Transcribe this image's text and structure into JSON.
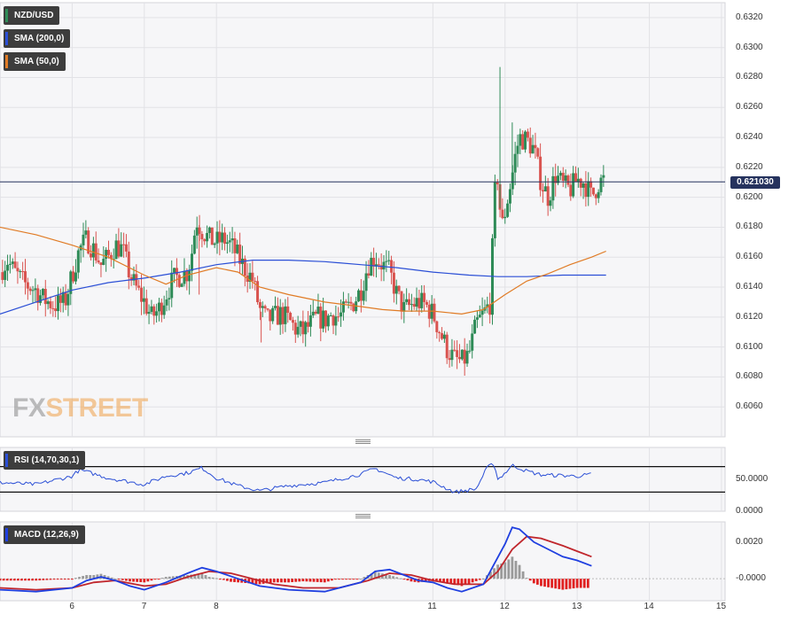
{
  "colors": {
    "background": "#ffffff",
    "panel_bg": "#f6f6f8",
    "grid": "#e2e2e6",
    "up": "#2e8b57",
    "down": "#d9534f",
    "sma200": "#2b4fd6",
    "sma50": "#e07b25",
    "price_line": "#26335e",
    "rsi": "#2b4fd6",
    "macd": "#1f3fe0",
    "signal": "#c0262c",
    "hist_pos": "#9a9a9a",
    "hist_neg": "#e02020"
  },
  "legend": {
    "pair": "NZD/USD",
    "sma200": "SMA (200,0)",
    "sma50": "SMA (50,0)",
    "rsi": "RSI (14,70,30,1)",
    "macd": "MACD (12,26,9)"
  },
  "price_tag": "0.621030",
  "watermark": {
    "fx": "FX",
    "street": "STREET"
  },
  "chart_data": {
    "type": "candlestick",
    "price_axis": {
      "ylim": [
        0.604,
        0.633
      ],
      "ticks": [
        "0.6320",
        "0.6300",
        "0.6280",
        "0.6260",
        "0.6240",
        "0.6220",
        "0.6200",
        "0.6180",
        "0.6160",
        "0.6140",
        "0.6120",
        "0.6100",
        "0.6080",
        "0.6060"
      ]
    },
    "current_price": 0.62103,
    "x_axis": {
      "xlim": [
        5.0,
        15.05
      ],
      "ticks": [
        {
          "x": 6,
          "label": "6"
        },
        {
          "x": 7,
          "label": "7"
        },
        {
          "x": 8,
          "label": "8"
        },
        {
          "x": 11,
          "label": "11"
        },
        {
          "x": 12,
          "label": "12"
        },
        {
          "x": 13,
          "label": "13"
        },
        {
          "x": 14,
          "label": "14"
        },
        {
          "x": 15,
          "label": "15"
        }
      ]
    },
    "close_path": [
      [
        5.0,
        0.615
      ],
      [
        5.1,
        0.6158
      ],
      [
        5.2,
        0.615
      ],
      [
        5.35,
        0.6142
      ],
      [
        5.5,
        0.6138
      ],
      [
        5.6,
        0.6132
      ],
      [
        5.75,
        0.6128
      ],
      [
        5.9,
        0.613
      ],
      [
        6.0,
        0.6148
      ],
      [
        6.1,
        0.6165
      ],
      [
        6.2,
        0.6172
      ],
      [
        6.3,
        0.6165
      ],
      [
        6.4,
        0.6155
      ],
      [
        6.5,
        0.616
      ],
      [
        6.6,
        0.6168
      ],
      [
        6.7,
        0.6165
      ],
      [
        6.8,
        0.6148
      ],
      [
        6.9,
        0.6138
      ],
      [
        7.0,
        0.613
      ],
      [
        7.1,
        0.612
      ],
      [
        7.2,
        0.6125
      ],
      [
        7.3,
        0.6135
      ],
      [
        7.4,
        0.6145
      ],
      [
        7.5,
        0.6148
      ],
      [
        7.6,
        0.615
      ],
      [
        7.65,
        0.616
      ],
      [
        7.72,
        0.6185
      ],
      [
        7.8,
        0.6178
      ],
      [
        7.9,
        0.6172
      ],
      [
        8.0,
        0.617
      ],
      [
        8.1,
        0.6172
      ],
      [
        8.2,
        0.6168
      ],
      [
        8.3,
        0.616
      ],
      [
        8.4,
        0.6152
      ],
      [
        8.5,
        0.6145
      ],
      [
        8.6,
        0.6125
      ],
      [
        8.7,
        0.6118
      ],
      [
        8.8,
        0.612
      ],
      [
        8.9,
        0.6122
      ],
      [
        9.0,
        0.6118
      ],
      [
        9.1,
        0.6112
      ],
      [
        9.2,
        0.611
      ],
      [
        9.3,
        0.6115
      ],
      [
        9.4,
        0.612
      ],
      [
        9.5,
        0.6118
      ],
      [
        9.6,
        0.6122
      ],
      [
        9.7,
        0.612
      ],
      [
        9.8,
        0.6125
      ],
      [
        9.9,
        0.613
      ],
      [
        10.0,
        0.6138
      ],
      [
        10.1,
        0.6155
      ],
      [
        10.2,
        0.616
      ],
      [
        10.3,
        0.6155
      ],
      [
        10.4,
        0.615
      ],
      [
        10.5,
        0.6135
      ],
      [
        10.6,
        0.6125
      ],
      [
        10.7,
        0.6128
      ],
      [
        10.8,
        0.613
      ],
      [
        10.9,
        0.6128
      ],
      [
        11.0,
        0.6122
      ],
      [
        11.1,
        0.611
      ],
      [
        11.2,
        0.6098
      ],
      [
        11.3,
        0.6092
      ],
      [
        11.4,
        0.609
      ],
      [
        11.5,
        0.6095
      ],
      [
        11.6,
        0.6115
      ],
      [
        11.7,
        0.6122
      ],
      [
        11.8,
        0.613
      ],
      [
        11.85,
        0.62
      ],
      [
        11.9,
        0.6215
      ],
      [
        11.95,
        0.6178
      ],
      [
        12.0,
        0.619
      ],
      [
        12.1,
        0.6215
      ],
      [
        12.15,
        0.623
      ],
      [
        12.2,
        0.624
      ],
      [
        12.3,
        0.6238
      ],
      [
        12.4,
        0.6232
      ],
      [
        12.5,
        0.621
      ],
      [
        12.6,
        0.62
      ],
      [
        12.7,
        0.6215
      ],
      [
        12.8,
        0.6208
      ],
      [
        12.9,
        0.6205
      ],
      [
        13.0,
        0.6212
      ],
      [
        13.1,
        0.621
      ],
      [
        13.2,
        0.62
      ],
      [
        13.3,
        0.621
      ],
      [
        13.4,
        0.6212
      ]
    ],
    "spikes": [
      {
        "x": 11.93,
        "high": 0.6287
      },
      {
        "x": 12.1,
        "high": 0.625
      },
      {
        "x": 8.62,
        "low": 0.6103
      },
      {
        "x": 7.76,
        "low": 0.6135
      }
    ],
    "sma200": [
      [
        5.0,
        0.6122
      ],
      [
        5.5,
        0.613
      ],
      [
        6.0,
        0.6138
      ],
      [
        6.5,
        0.6143
      ],
      [
        7.0,
        0.6146
      ],
      [
        7.5,
        0.615
      ],
      [
        8.0,
        0.6155
      ],
      [
        8.5,
        0.6158
      ],
      [
        9.0,
        0.6158
      ],
      [
        9.5,
        0.6157
      ],
      [
        10.0,
        0.6155
      ],
      [
        10.5,
        0.6153
      ],
      [
        11.0,
        0.615
      ],
      [
        11.5,
        0.6148
      ],
      [
        11.9,
        0.6147
      ],
      [
        12.3,
        0.6147
      ],
      [
        12.8,
        0.6148
      ],
      [
        13.4,
        0.6148
      ]
    ],
    "sma50": [
      [
        5.0,
        0.618
      ],
      [
        5.5,
        0.6175
      ],
      [
        6.0,
        0.6168
      ],
      [
        6.5,
        0.616
      ],
      [
        7.0,
        0.6148
      ],
      [
        7.3,
        0.6142
      ],
      [
        7.6,
        0.6148
      ],
      [
        8.0,
        0.6153
      ],
      [
        8.3,
        0.615
      ],
      [
        8.6,
        0.614
      ],
      [
        9.0,
        0.6135
      ],
      [
        9.5,
        0.613
      ],
      [
        10.0,
        0.6127
      ],
      [
        10.3,
        0.6125
      ],
      [
        10.6,
        0.6124
      ],
      [
        11.0,
        0.6124
      ],
      [
        11.4,
        0.6122
      ],
      [
        11.7,
        0.6125
      ],
      [
        12.0,
        0.6135
      ],
      [
        12.3,
        0.6144
      ],
      [
        12.6,
        0.6149
      ],
      [
        12.9,
        0.6155
      ],
      [
        13.2,
        0.616
      ],
      [
        13.4,
        0.6164
      ]
    ],
    "rsi": {
      "ylim": [
        0,
        100
      ],
      "label_ticks": [
        "50.0000",
        "0.0000"
      ],
      "band_lines": [
        70,
        30
      ],
      "series": [
        [
          5.0,
          45
        ],
        [
          5.5,
          42
        ],
        [
          6.0,
          55
        ],
        [
          6.1,
          65
        ],
        [
          6.5,
          52
        ],
        [
          7.0,
          42
        ],
        [
          7.3,
          55
        ],
        [
          7.6,
          60
        ],
        [
          7.8,
          68
        ],
        [
          8.0,
          52
        ],
        [
          8.3,
          40
        ],
        [
          8.6,
          32
        ],
        [
          9.0,
          40
        ],
        [
          9.5,
          45
        ],
        [
          10.0,
          58
        ],
        [
          10.2,
          67
        ],
        [
          10.5,
          52
        ],
        [
          10.8,
          50
        ],
        [
          11.0,
          46
        ],
        [
          11.3,
          30
        ],
        [
          11.6,
          35
        ],
        [
          11.75,
          68
        ],
        [
          11.85,
          75
        ],
        [
          11.9,
          50
        ],
        [
          12.0,
          60
        ],
        [
          12.1,
          72
        ],
        [
          12.3,
          63
        ],
        [
          12.5,
          57
        ],
        [
          12.8,
          56
        ],
        [
          13.0,
          55
        ],
        [
          13.2,
          58
        ]
      ]
    },
    "macd": {
      "ylim": [
        -0.0012,
        0.0031
      ],
      "label_ticks": [
        "0.0020",
        "-0.0000"
      ],
      "macd_line": [
        [
          5.0,
          -0.0006
        ],
        [
          5.5,
          -0.0007
        ],
        [
          6.0,
          -0.0005
        ],
        [
          6.2,
          -0.0001
        ],
        [
          6.4,
          0.0001
        ],
        [
          6.6,
          -0.0001
        ],
        [
          6.8,
          -0.0004
        ],
        [
          7.0,
          -0.0006
        ],
        [
          7.3,
          -0.0002
        ],
        [
          7.6,
          0.0003
        ],
        [
          7.8,
          0.0006
        ],
        [
          8.0,
          0.0004
        ],
        [
          8.3,
          0.0
        ],
        [
          8.6,
          -0.0004
        ],
        [
          9.0,
          -0.0006
        ],
        [
          9.5,
          -0.0007
        ],
        [
          10.0,
          -0.0002
        ],
        [
          10.2,
          0.0004
        ],
        [
          10.4,
          0.0005
        ],
        [
          10.6,
          0.0002
        ],
        [
          10.8,
          -0.0001
        ],
        [
          11.0,
          -0.0002
        ],
        [
          11.2,
          -0.0005
        ],
        [
          11.4,
          -0.0007
        ],
        [
          11.7,
          -0.0003
        ],
        [
          11.85,
          0.0008
        ],
        [
          12.0,
          0.0019
        ],
        [
          12.1,
          0.0028
        ],
        [
          12.2,
          0.0027
        ],
        [
          12.4,
          0.002
        ],
        [
          12.6,
          0.0016
        ],
        [
          12.8,
          0.0012
        ],
        [
          13.0,
          0.001
        ],
        [
          13.2,
          0.0007
        ]
      ],
      "signal_line": [
        [
          5.0,
          -0.0005
        ],
        [
          5.5,
          -0.0006
        ],
        [
          6.0,
          -0.0005
        ],
        [
          6.3,
          -0.0002
        ],
        [
          6.6,
          -0.0001
        ],
        [
          7.0,
          -0.0004
        ],
        [
          7.3,
          -0.0003
        ],
        [
          7.6,
          0.0001
        ],
        [
          7.9,
          0.0004
        ],
        [
          8.2,
          0.0003
        ],
        [
          8.5,
          0.0
        ],
        [
          8.8,
          -0.0003
        ],
        [
          9.2,
          -0.0005
        ],
        [
          9.7,
          -0.0005
        ],
        [
          10.1,
          -0.0001
        ],
        [
          10.4,
          0.0003
        ],
        [
          10.7,
          0.0002
        ],
        [
          11.0,
          -0.0001
        ],
        [
          11.3,
          -0.0003
        ],
        [
          11.7,
          -0.0003
        ],
        [
          11.9,
          0.0004
        ],
        [
          12.1,
          0.0016
        ],
        [
          12.3,
          0.0023
        ],
        [
          12.5,
          0.0022
        ],
        [
          12.8,
          0.0018
        ],
        [
          13.0,
          0.0015
        ],
        [
          13.2,
          0.0012
        ]
      ]
    }
  }
}
